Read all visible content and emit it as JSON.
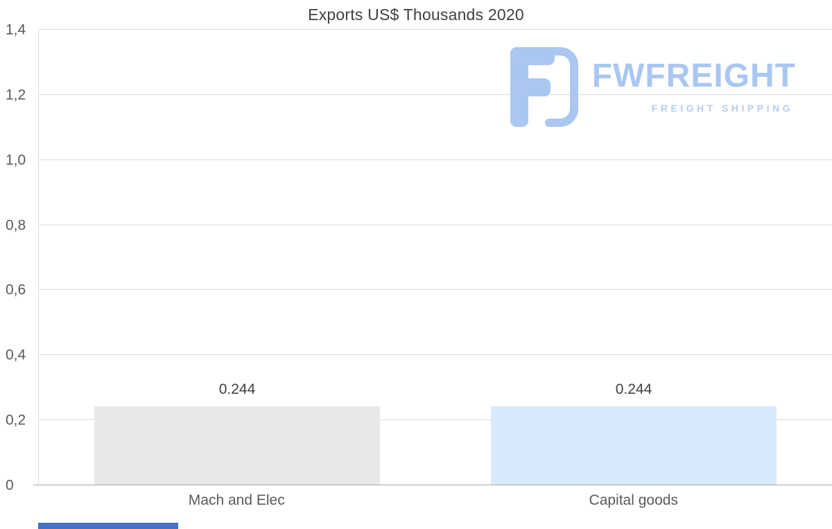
{
  "header": {
    "title": "Exports US$ Thousands 2020"
  },
  "watermark": {
    "brand": "FWFREIGHT",
    "tagline": "FREIGHT SHIPPING"
  },
  "chart_data": {
    "type": "bar",
    "title": "Exports US$ Thousands 2020",
    "categories": [
      "Mach and Elec",
      "Capital goods"
    ],
    "values": [
      0.244,
      0.244
    ],
    "value_labels": [
      "0.244",
      "0.244"
    ],
    "bar_colors": [
      "#e8e8e8",
      "#d9e9fc"
    ],
    "xlabel": "",
    "ylabel": "",
    "ylim": [
      0,
      1.4
    ],
    "ytick_step": 0.2,
    "ytick_labels": [
      "0",
      "0,2",
      "0,4",
      "0,6",
      "0,8",
      "1,0",
      "1,2",
      "1,4"
    ],
    "grid": true,
    "legend_position": "none",
    "decimal_separator_axis": ","
  },
  "colors": {
    "grid": "#d9d9d9",
    "axis": "#a6a6a6",
    "text": "#595959",
    "title_text": "#404040",
    "logo_blue": "#a9c7f1",
    "accent_strip": "#4472c4"
  }
}
